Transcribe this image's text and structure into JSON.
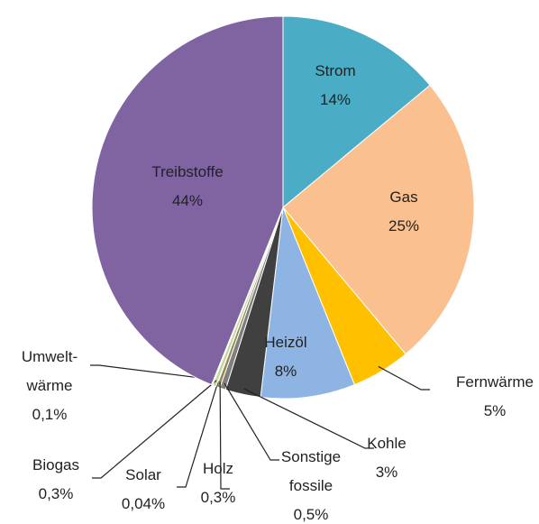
{
  "chart_data": {
    "type": "pie",
    "categories": [
      "Strom",
      "Gas",
      "Fernwärme",
      "Heizöl",
      "Kohle",
      "Sonstige\nfossile",
      "Holz",
      "Solar",
      "Biogas",
      "Umwelt-\nwärme",
      "Treibstoffe"
    ],
    "values": [
      14,
      25,
      5,
      8,
      3,
      0.5,
      0.3,
      0.04,
      0.3,
      0.1,
      44
    ],
    "value_labels": [
      "14%",
      "25%",
      "5%",
      "8%",
      "3%",
      "0,5%",
      "0,3%",
      "0,04%",
      "0,3%",
      "0,1%",
      "44%"
    ],
    "colors": [
      "#4bacc6",
      "#fac090",
      "#ffc000",
      "#8eb4e3",
      "#404040",
      "#7f7f7f",
      "#948a54",
      "#ffff00",
      "#c3d69b",
      "#b7dee8",
      "#8064a2"
    ]
  }
}
